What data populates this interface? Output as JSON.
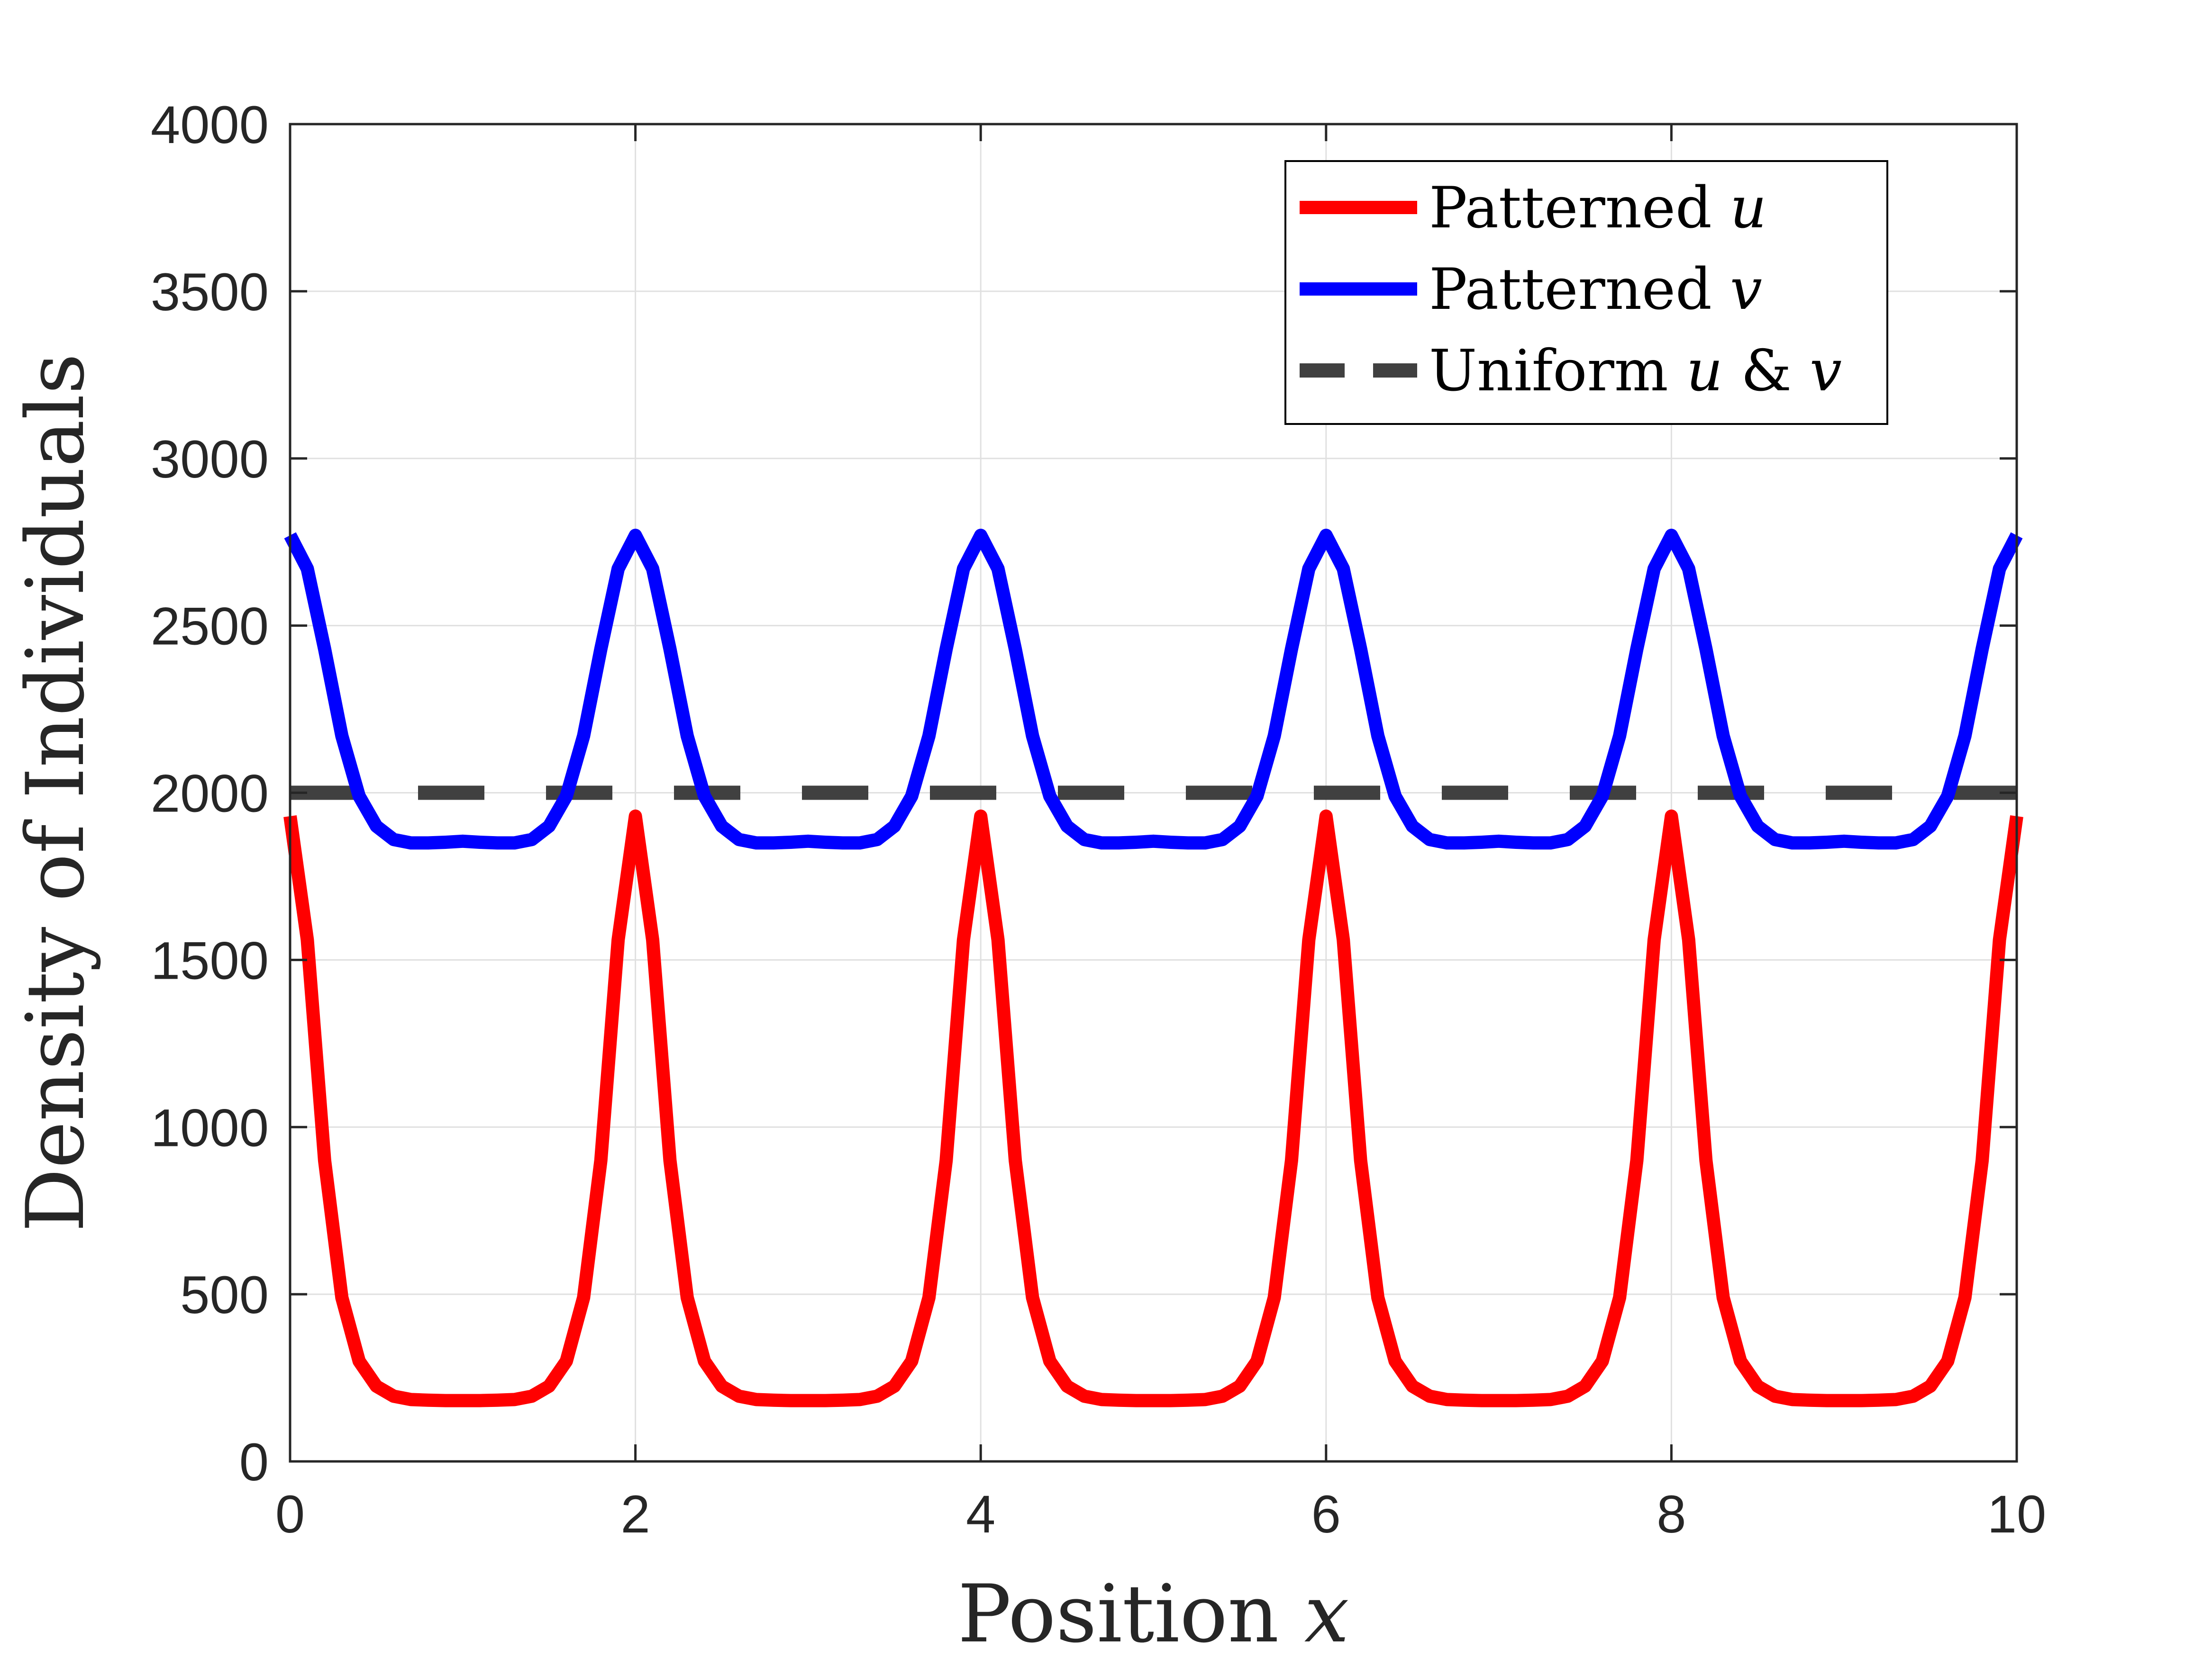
{
  "colors": {
    "u": "#ff0000",
    "v": "#0000ff",
    "uniform": "#404040",
    "grid": "#e0e0e0",
    "axis": "#262626"
  },
  "chart_data": {
    "type": "line",
    "title": "",
    "xlabel": {
      "text": "Position ",
      "math": "x"
    },
    "ylabel": "Density of Individuals",
    "xlim": [
      0,
      10
    ],
    "ylim": [
      0,
      4000
    ],
    "xticks": [
      0,
      2,
      4,
      6,
      8,
      10
    ],
    "yticks": [
      0,
      500,
      1000,
      1500,
      2000,
      2500,
      3000,
      3500,
      4000
    ],
    "grid": true,
    "legend_position": "top-right",
    "series": [
      {
        "name": "Patterned u",
        "legend_text": "Patterned ",
        "legend_math": "u",
        "style": "solid",
        "x": [
          0.0,
          0.1,
          0.2,
          0.3,
          0.4,
          0.5,
          0.6,
          0.7,
          0.8,
          0.9,
          1.0,
          1.1,
          1.2,
          1.3,
          1.4,
          1.5,
          1.6,
          1.7,
          1.8,
          1.9,
          2.0,
          2.1,
          2.2,
          2.3,
          2.4,
          2.5,
          2.6,
          2.7,
          2.8,
          2.9,
          3.0,
          3.1,
          3.2,
          3.3,
          3.4,
          3.5,
          3.6,
          3.7,
          3.8,
          3.9,
          4.0,
          4.1,
          4.2,
          4.3,
          4.4,
          4.5,
          4.6,
          4.7,
          4.8,
          4.9,
          5.0,
          5.1,
          5.2,
          5.3,
          5.4,
          5.5,
          5.6,
          5.7,
          5.8,
          5.9,
          6.0,
          6.1,
          6.2,
          6.3,
          6.4,
          6.5,
          6.6,
          6.7,
          6.8,
          6.9,
          7.0,
          7.1,
          7.2,
          7.3,
          7.4,
          7.5,
          7.6,
          7.7,
          7.8,
          7.9,
          8.0,
          8.1,
          8.2,
          8.3,
          8.4,
          8.5,
          8.6,
          8.7,
          8.8,
          8.9,
          9.0,
          9.1,
          9.2,
          9.3,
          9.4,
          9.5,
          9.6,
          9.7,
          9.8,
          9.9,
          10.0
        ],
        "values": [
          1930,
          1560,
          900,
          490,
          300,
          225,
          195,
          185,
          183,
          182,
          182,
          182,
          183,
          185,
          195,
          225,
          300,
          490,
          900,
          1560,
          1930,
          1560,
          900,
          490,
          300,
          225,
          195,
          185,
          183,
          182,
          182,
          182,
          183,
          185,
          195,
          225,
          300,
          490,
          900,
          1560,
          1930,
          1560,
          900,
          490,
          300,
          225,
          195,
          185,
          183,
          182,
          182,
          182,
          183,
          185,
          195,
          225,
          300,
          490,
          900,
          1560,
          1930,
          1560,
          900,
          490,
          300,
          225,
          195,
          185,
          183,
          182,
          182,
          182,
          183,
          185,
          195,
          225,
          300,
          490,
          900,
          1560,
          1930,
          1560,
          900,
          490,
          300,
          225,
          195,
          185,
          183,
          182,
          182,
          182,
          183,
          185,
          195,
          225,
          300,
          490,
          900,
          1560,
          1930
        ]
      },
      {
        "name": "Patterned v",
        "legend_text": "Patterned ",
        "legend_math": "v",
        "style": "solid",
        "x": [
          0.0,
          0.1,
          0.2,
          0.3,
          0.4,
          0.5,
          0.6,
          0.7,
          0.8,
          0.9,
          1.0,
          1.1,
          1.2,
          1.3,
          1.4,
          1.5,
          1.6,
          1.7,
          1.8,
          1.9,
          2.0,
          2.1,
          2.2,
          2.3,
          2.4,
          2.5,
          2.6,
          2.7,
          2.8,
          2.9,
          3.0,
          3.1,
          3.2,
          3.3,
          3.4,
          3.5,
          3.6,
          3.7,
          3.8,
          3.9,
          4.0,
          4.1,
          4.2,
          4.3,
          4.4,
          4.5,
          4.6,
          4.7,
          4.8,
          4.9,
          5.0,
          5.1,
          5.2,
          5.3,
          5.4,
          5.5,
          5.6,
          5.7,
          5.8,
          5.9,
          6.0,
          6.1,
          6.2,
          6.3,
          6.4,
          6.5,
          6.6,
          6.7,
          6.8,
          6.9,
          7.0,
          7.1,
          7.2,
          7.3,
          7.4,
          7.5,
          7.6,
          7.7,
          7.8,
          7.9,
          8.0,
          8.1,
          8.2,
          8.3,
          8.4,
          8.5,
          8.6,
          8.7,
          8.8,
          8.9,
          9.0,
          9.1,
          9.2,
          9.3,
          9.4,
          9.5,
          9.6,
          9.7,
          9.8,
          9.9,
          10.0
        ],
        "values": [
          2770,
          2670,
          2430,
          2170,
          1990,
          1900,
          1860,
          1850,
          1850,
          1852,
          1855,
          1852,
          1850,
          1850,
          1860,
          1900,
          1990,
          2170,
          2430,
          2670,
          2770,
          2670,
          2430,
          2170,
          1990,
          1900,
          1860,
          1850,
          1850,
          1852,
          1855,
          1852,
          1850,
          1850,
          1860,
          1900,
          1990,
          2170,
          2430,
          2670,
          2770,
          2670,
          2430,
          2170,
          1990,
          1900,
          1860,
          1850,
          1850,
          1852,
          1855,
          1852,
          1850,
          1850,
          1860,
          1900,
          1990,
          2170,
          2430,
          2670,
          2770,
          2670,
          2430,
          2170,
          1990,
          1900,
          1860,
          1850,
          1850,
          1852,
          1855,
          1852,
          1850,
          1850,
          1860,
          1900,
          1990,
          2170,
          2430,
          2670,
          2770,
          2670,
          2430,
          2170,
          1990,
          1900,
          1860,
          1850,
          1850,
          1852,
          1855,
          1852,
          1850,
          1850,
          1860,
          1900,
          1990,
          2170,
          2430,
          2670,
          2770
        ]
      },
      {
        "name": "Uniform u & v",
        "legend_text": "Uniform ",
        "legend_math": "u",
        "legend_amp": " & ",
        "legend_math2": "v",
        "style": "dashed",
        "x": [
          0,
          10
        ],
        "values": [
          2000,
          2000
        ]
      }
    ]
  }
}
